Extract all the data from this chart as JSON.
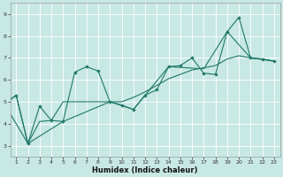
{
  "xlabel": "Humidex (Indice chaleur)",
  "xlim": [
    0.5,
    23.5
  ],
  "ylim": [
    2.5,
    9.5
  ],
  "xticks": [
    1,
    2,
    3,
    4,
    5,
    6,
    7,
    8,
    9,
    10,
    11,
    12,
    13,
    14,
    15,
    16,
    17,
    18,
    19,
    20,
    21,
    22,
    23
  ],
  "yticks": [
    3,
    4,
    5,
    6,
    7,
    8,
    9
  ],
  "bg_color": "#c8e8e4",
  "line_color": "#1e7868",
  "grid_color": "#ffffff",
  "line1_x": [
    0,
    1,
    2,
    3,
    4,
    5,
    6,
    7,
    8,
    9,
    10,
    11,
    12,
    13,
    14,
    15,
    16,
    17,
    18,
    19,
    20,
    21,
    22,
    23
  ],
  "line1_y": [
    4.9,
    5.3,
    3.1,
    4.8,
    4.15,
    4.1,
    6.35,
    6.6,
    6.4,
    5.0,
    4.85,
    4.65,
    5.3,
    5.55,
    6.6,
    6.65,
    7.0,
    6.3,
    6.25,
    8.2,
    8.85,
    7.0,
    6.95,
    6.85
  ],
  "line2_x": [
    0,
    2,
    5,
    9,
    11,
    14,
    17,
    19,
    21,
    23
  ],
  "line2_y": [
    4.9,
    3.1,
    4.1,
    5.0,
    4.65,
    6.6,
    6.5,
    8.2,
    7.0,
    6.85
  ],
  "line3_x": [
    0,
    1,
    2,
    3,
    4,
    5,
    6,
    7,
    8,
    9,
    10,
    11,
    12,
    13,
    14,
    15,
    16,
    17,
    18,
    19,
    20,
    21,
    22,
    23
  ],
  "line3_y": [
    4.9,
    5.3,
    3.1,
    4.1,
    4.15,
    5.0,
    5.0,
    5.0,
    5.0,
    5.0,
    5.0,
    5.2,
    5.45,
    5.75,
    6.05,
    6.25,
    6.45,
    6.55,
    6.65,
    6.95,
    7.1,
    7.0,
    6.95,
    6.85
  ]
}
